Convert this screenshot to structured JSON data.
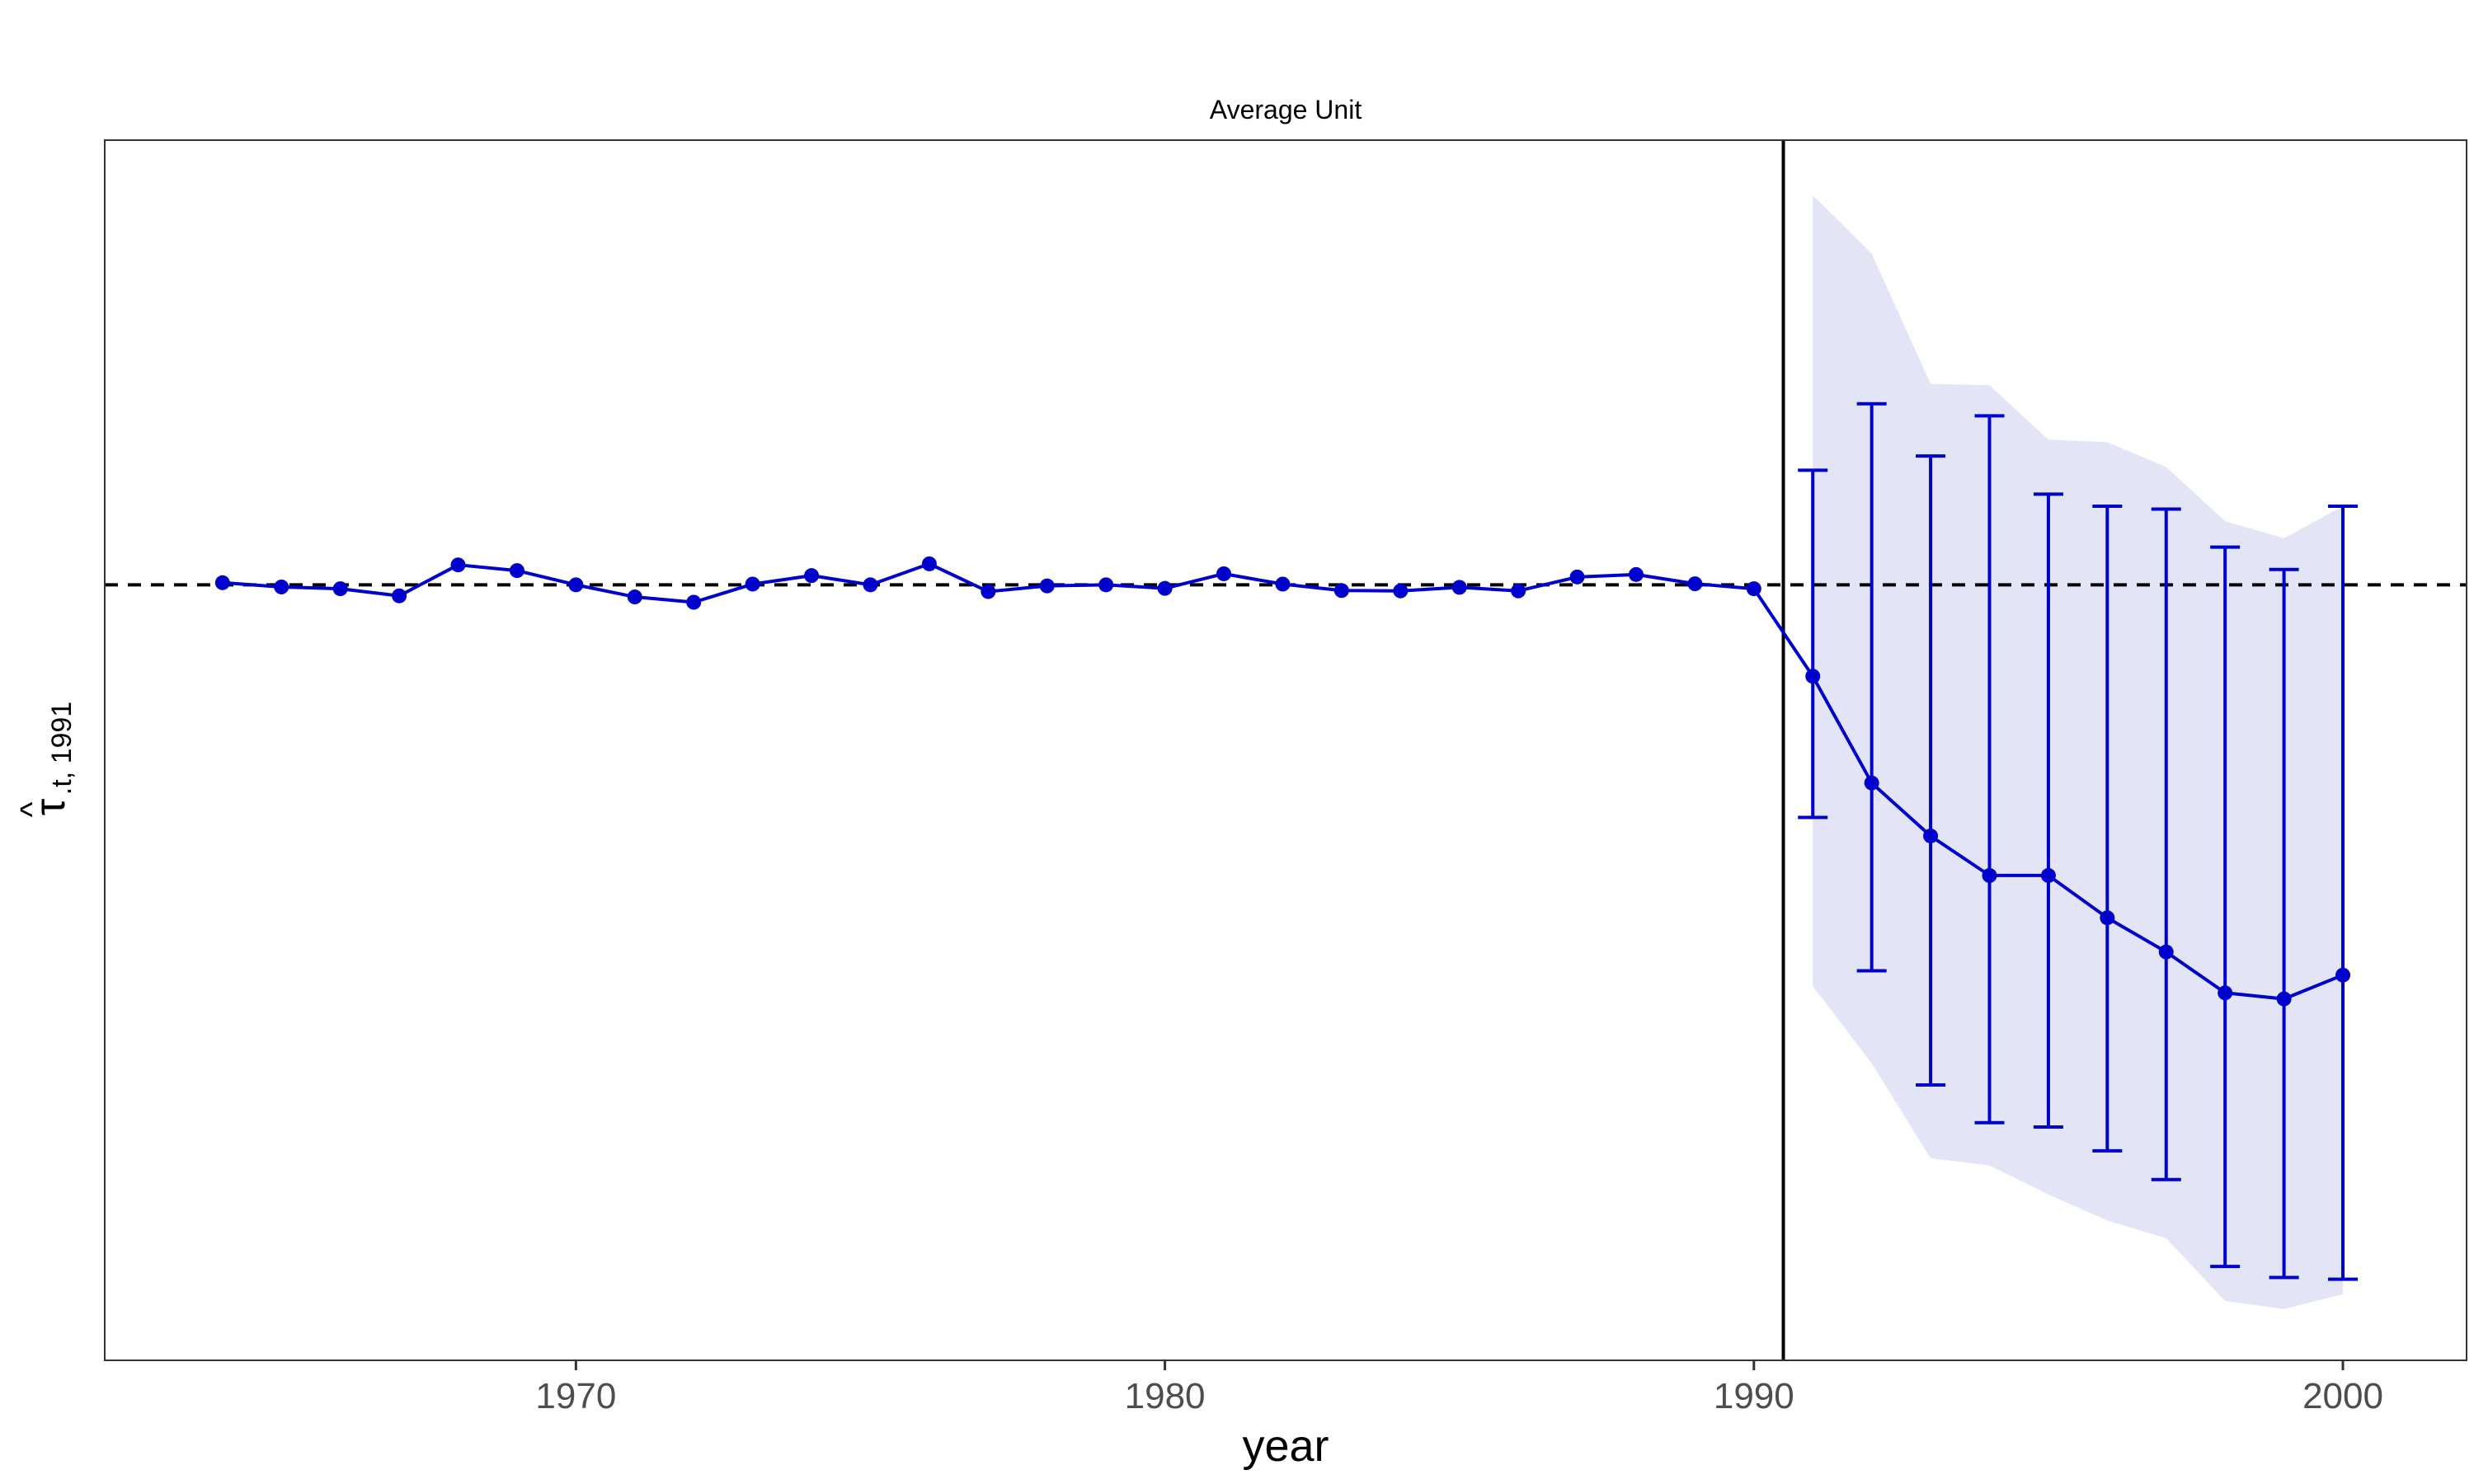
{
  "chart_data": {
    "type": "line",
    "title": "Average Unit",
    "xlabel": "year",
    "ylabel": {
      "main": "τ",
      "hat": "^",
      "subscript": ".t, 1991"
    },
    "x_ticks": [
      "1970",
      "1980",
      "1990",
      "2000"
    ],
    "xlim": [
      1962,
      2002.1
    ],
    "ylim": [
      -0.218,
      0.125
    ],
    "grid": false,
    "legend": "none",
    "treatment_line_x": 1990.5,
    "reference_line_y": 0,
    "colors": {
      "line": "#0000CD",
      "band": "#E3E5F6",
      "reference": "#000000"
    },
    "series": [
      {
        "type": "line",
        "x": [
          1964,
          1965,
          1966,
          1967,
          1968,
          1969,
          1970,
          1971,
          1972,
          1973,
          1974,
          1975,
          1976,
          1977,
          1978,
          1979,
          1980,
          1981,
          1982,
          1983,
          1984,
          1985,
          1986,
          1987,
          1988,
          1989,
          1990,
          1991,
          1992,
          1993,
          1994,
          1995,
          1996,
          1997,
          1998,
          1999,
          2000
        ],
        "y": [
          0.0006,
          -0.0006,
          -0.0011,
          -0.0031,
          0.0056,
          0.004,
          0,
          -0.0034,
          -0.0049,
          0.0002,
          0.0026,
          0,
          0.0059,
          -0.0019,
          -0.0003,
          0,
          -0.001,
          0.0031,
          0.0002,
          -0.0016,
          -0.0017,
          -0.0007,
          -0.0017,
          0.0022,
          0.0029,
          0.0003,
          -0.0011,
          -0.0257,
          -0.0557,
          -0.0706,
          -0.0817,
          -0.0817,
          -0.0936,
          -0.1032,
          -0.1147,
          -0.1164,
          -0.1097
        ]
      }
    ],
    "error_bars": {
      "x": [
        1991,
        1992,
        1993,
        1994,
        1995,
        1996,
        1997,
        1998,
        1999,
        2000
      ],
      "lower": [
        -0.0654,
        -0.1085,
        -0.1406,
        -0.1512,
        -0.1524,
        -0.1591,
        -0.1672,
        -0.1916,
        -0.1947,
        -0.1952
      ],
      "upper": [
        0.0322,
        0.0509,
        0.0362,
        0.0475,
        0.0255,
        0.0221,
        0.0213,
        0.0106,
        0.0043,
        0.0221
      ]
    },
    "confidence_band": {
      "x": [
        1991,
        1992,
        1993,
        1994,
        1995,
        1996,
        1997,
        1998,
        1999,
        2000
      ],
      "lower": [
        -0.1128,
        -0.1345,
        -0.1612,
        -0.1632,
        -0.1714,
        -0.1787,
        -0.1837,
        -0.2013,
        -0.2036,
        -0.1994
      ],
      "upper": [
        0.1095,
        0.0931,
        0.0565,
        0.0561,
        0.0408,
        0.0401,
        0.0331,
        0.0179,
        0.0131,
        0.0221
      ]
    }
  }
}
